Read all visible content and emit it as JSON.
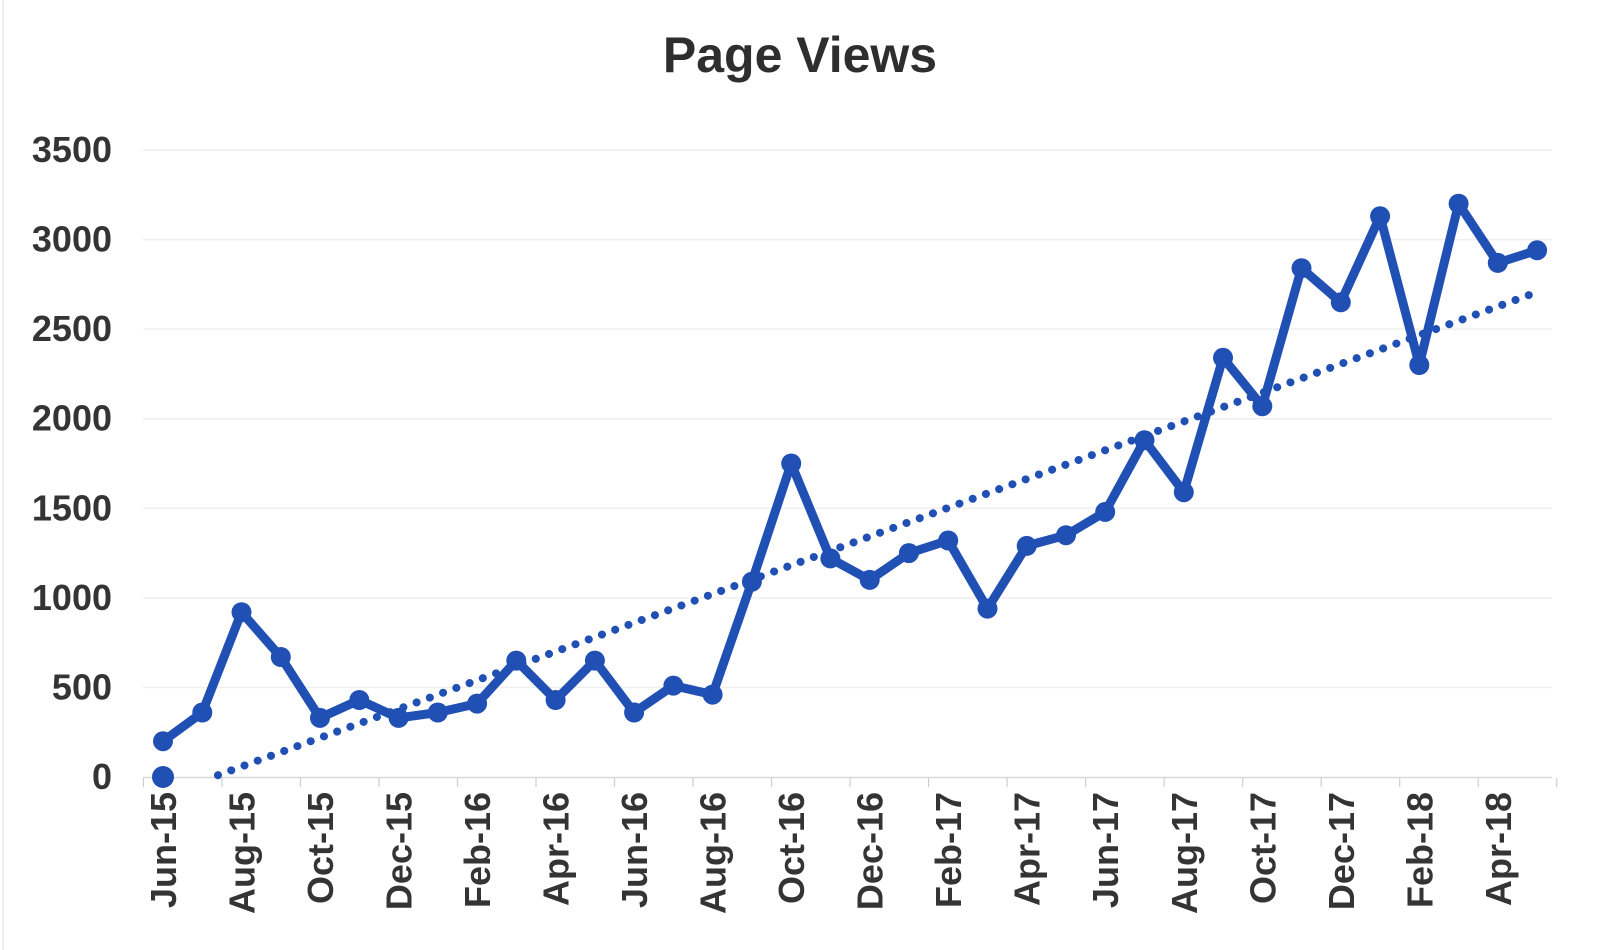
{
  "chart_data": {
    "type": "line",
    "title": "Page Views",
    "xlabel": "",
    "ylabel": "",
    "legend": "none",
    "grid": "horizontal",
    "ylim": [
      0,
      3500
    ],
    "y_ticks": [
      0,
      500,
      1000,
      1500,
      2000,
      2500,
      3000,
      3500
    ],
    "x": [
      "Jun-15",
      "Jul-15",
      "Aug-15",
      "Sep-15",
      "Oct-15",
      "Nov-15",
      "Dec-15",
      "Jan-16",
      "Feb-16",
      "Mar-16",
      "Apr-16",
      "May-16",
      "Jun-16",
      "Jul-16",
      "Aug-16",
      "Sep-16",
      "Oct-16",
      "Nov-16",
      "Dec-16",
      "Jan-17",
      "Feb-17",
      "Mar-17",
      "Apr-17",
      "May-17",
      "Jun-17",
      "Jul-17",
      "Aug-17",
      "Sep-17",
      "Oct-17",
      "Nov-17",
      "Dec-17",
      "Jan-18",
      "Feb-18",
      "Mar-18",
      "Apr-18",
      "May-18"
    ],
    "x_tick_labels": [
      "Jun-15",
      "Aug-15",
      "Oct-15",
      "Dec-15",
      "Feb-16",
      "Apr-16",
      "Jun-16",
      "Aug-16",
      "Oct-16",
      "Dec-16",
      "Feb-17",
      "Apr-17",
      "Jun-17",
      "Aug-17",
      "Oct-17",
      "Dec-17",
      "Feb-18",
      "Apr-18"
    ],
    "series": [
      {
        "name": "Page Views",
        "line_style": "solid",
        "marker": "circle",
        "values": [
          200,
          360,
          920,
          670,
          330,
          430,
          330,
          360,
          410,
          650,
          430,
          650,
          360,
          510,
          460,
          1090,
          1750,
          1220,
          1100,
          1250,
          1320,
          940,
          1290,
          1350,
          1480,
          1880,
          1590,
          2340,
          2070,
          2840,
          2650,
          3130,
          2300,
          3200,
          2870,
          2940
        ]
      }
    ],
    "standalone_points": [
      {
        "x": "Jun-15",
        "value": 0
      }
    ],
    "trendline": {
      "style": "dotted",
      "from": {
        "month_index": 1.4,
        "value": 10
      },
      "to": {
        "month_index": 35.0,
        "value": 2707
      }
    },
    "colors": {
      "series": "#2150b4",
      "trend": "#2150b4",
      "grid": "#efefef",
      "axis_line": "#d9d9d9",
      "tick": "#c9ced8",
      "title_text": "#2e2e2e",
      "label_text": "#343434"
    }
  }
}
